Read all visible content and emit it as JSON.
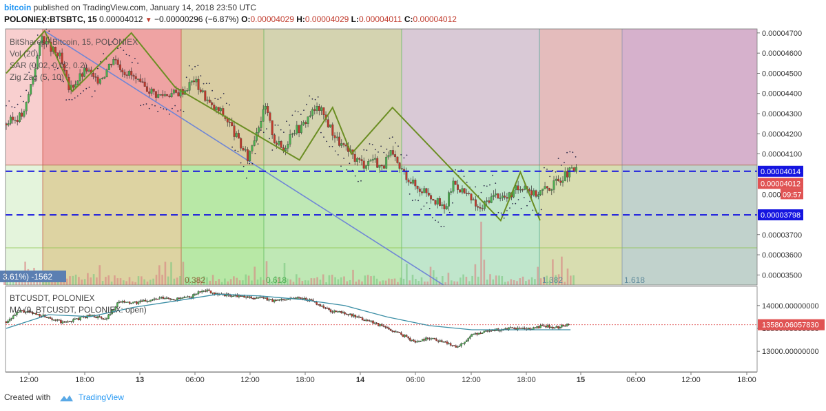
{
  "header": {
    "author": "bitcoin",
    "published_text": "published on TradingView.com, January 14, 2018 23:50 UTC",
    "symbol": "POLONIEX:BTSBTC, 15",
    "last": "0.00004012",
    "change": "−0.00000296 (−6.87%)",
    "o_label": "O:",
    "o": "0.00004029",
    "h_label": "H:",
    "h": "0.00004029",
    "l_label": "L:",
    "l": "0.00004011",
    "c_label": "C:",
    "c": "0.00004012"
  },
  "main_pane": {
    "legend": [
      "BitShares / Bitcoin, 15, POLONIEX",
      "Vol (20)",
      "SAR (0.02, 0.02, 0.2)",
      "Zig Zag (5, 10)"
    ],
    "fib_labels": [
      "0.382",
      "0.618",
      "1.382",
      "1.618"
    ],
    "left_tag": "3.61%) -1562",
    "price_tags": {
      "line_upper": "0.00004014",
      "last": "0.00004012",
      "countdown": "09:57",
      "line_lower": "0.00003798",
      "partial": "0.000"
    },
    "colors": {
      "up": "#4caf50",
      "down": "#c0392b",
      "dash": "#1515e0",
      "zigzag": "#6b8e23",
      "trend": "#6f86d6"
    }
  },
  "lower_pane": {
    "legend": [
      "BTCUSDT, POLONIEX",
      "MA (9, BTCUSDT, POLONIEX: open)"
    ],
    "price_tag": "13580.06057830"
  },
  "footer": {
    "created_with": "Created with",
    "brand": "TradingView"
  },
  "chart_data": [
    {
      "type": "candlestick",
      "title": "BitShares / Bitcoin, 15, POLONIEX",
      "ylim": [
        3.45e-05,
        4.72e-05
      ],
      "yticks": [
        "0.00004700",
        "0.00004600",
        "0.00004500",
        "0.00004400",
        "0.00004300",
        "0.00004200",
        "0.00004100",
        "0.00003700",
        "0.00003600",
        "0.00003500"
      ],
      "xticks": [
        "12:00",
        "18:00",
        "13",
        "06:00",
        "12:00",
        "18:00",
        "14",
        "06:00",
        "12:00",
        "18:00",
        "15",
        "06:00",
        "12:00",
        "18:00"
      ],
      "close_path": [
        [
          0,
          4.25e-05
        ],
        [
          2,
          4.3e-05
        ],
        [
          4,
          4.68e-05
        ],
        [
          5,
          4.62e-05
        ],
        [
          6,
          4.58e-05
        ],
        [
          7,
          4.42e-05
        ],
        [
          8,
          4.47e-05
        ],
        [
          9,
          4.52e-05
        ],
        [
          10,
          4.46e-05
        ],
        [
          11,
          4.5e-05
        ],
        [
          12,
          4.58e-05
        ],
        [
          13,
          4.52e-05
        ],
        [
          14,
          4.49e-05
        ],
        [
          15,
          4.44e-05
        ],
        [
          16,
          4.42e-05
        ],
        [
          17,
          4.39e-05
        ],
        [
          18,
          4.4e-05
        ],
        [
          19,
          4.4e-05
        ],
        [
          20,
          4.42e-05
        ],
        [
          21,
          4.47e-05
        ],
        [
          22,
          4.4e-05
        ],
        [
          23,
          4.33e-05
        ],
        [
          24,
          4.31e-05
        ],
        [
          25,
          4.25e-05
        ],
        [
          26,
          4.16e-05
        ],
        [
          27,
          4.08e-05
        ],
        [
          28,
          4.22e-05
        ],
        [
          29,
          4.33e-05
        ],
        [
          30,
          4.17e-05
        ],
        [
          31,
          4.12e-05
        ],
        [
          32,
          4.22e-05
        ],
        [
          33,
          4.23e-05
        ],
        [
          34,
          4.3e-05
        ],
        [
          35,
          4.33e-05
        ],
        [
          36,
          4.25e-05
        ],
        [
          37,
          4.17e-05
        ],
        [
          38,
          4.12e-05
        ],
        [
          39,
          4.08e-05
        ],
        [
          40,
          4.05e-05
        ],
        [
          41,
          4.08e-05
        ],
        [
          42,
          4.03e-05
        ],
        [
          43,
          4.1e-05
        ],
        [
          44,
          4.03e-05
        ],
        [
          45,
          3.98e-05
        ],
        [
          46,
          3.93e-05
        ],
        [
          47,
          3.92e-05
        ],
        [
          48,
          3.87e-05
        ],
        [
          49,
          3.82e-05
        ],
        [
          50,
          3.96e-05
        ],
        [
          51,
          3.92e-05
        ],
        [
          52,
          3.87e-05
        ],
        [
          53,
          3.82e-05
        ],
        [
          54,
          3.88e-05
        ],
        [
          55,
          3.9e-05
        ],
        [
          56,
          3.88e-05
        ],
        [
          57,
          3.92e-05
        ],
        [
          58,
          3.95e-05
        ],
        [
          59,
          3.9e-05
        ],
        [
          60,
          3.92e-05
        ],
        [
          61,
          3.94e-05
        ],
        [
          62,
          3.98e-05
        ],
        [
          63,
          4.01e-05
        ],
        [
          64,
          4.02e-05
        ]
      ],
      "zigzag": [
        [
          0,
          4.5e-05
        ],
        [
          4.3,
          4.71e-05
        ],
        [
          7.4,
          4.41e-05
        ],
        [
          14,
          4.7e-05
        ],
        [
          18.9,
          4.43e-05
        ],
        [
          32.8,
          4.07e-05
        ],
        [
          36.5,
          4.33e-05
        ],
        [
          38.6,
          4.1e-05
        ],
        [
          43.2,
          4.33e-05
        ],
        [
          55.3,
          3.77e-05
        ],
        [
          57.5,
          4.01e-05
        ],
        [
          59.7,
          3.77e-05
        ]
      ],
      "horizontal_lines": [
        4.014e-05,
        3.798e-05
      ],
      "trendline": [
        [
          4.3,
          4.71e-05
        ],
        [
          48.9,
          3.44e-05
        ]
      ],
      "fib_time_zones": [
        "0.382",
        "0.618",
        "1.382",
        "1.618"
      ],
      "volume_spike_index": 53
    },
    {
      "type": "candlestick",
      "title": "BTCUSDT, POLONIEX",
      "ylim": [
        12550,
        14420
      ],
      "yticks": [
        "14000.00000000",
        "13500.00000000",
        "13000.00000000"
      ],
      "last": 13580.0605783,
      "close_path": [
        [
          0,
          13650
        ],
        [
          2,
          13880
        ],
        [
          4,
          13820
        ],
        [
          6,
          13750
        ],
        [
          8,
          13620
        ],
        [
          10,
          13700
        ],
        [
          12,
          13790
        ],
        [
          14,
          13690
        ],
        [
          16,
          14080
        ],
        [
          18,
          14050
        ],
        [
          20,
          14110
        ],
        [
          22,
          14160
        ],
        [
          24,
          14140
        ],
        [
          26,
          14180
        ],
        [
          28,
          14350
        ],
        [
          30,
          14250
        ],
        [
          32,
          14220
        ],
        [
          34,
          14180
        ],
        [
          36,
          14170
        ],
        [
          38,
          14100
        ],
        [
          40,
          14160
        ],
        [
          42,
          14170
        ],
        [
          44,
          14050
        ],
        [
          46,
          13880
        ],
        [
          48,
          13840
        ],
        [
          50,
          13720
        ],
        [
          52,
          13640
        ],
        [
          54,
          13500
        ],
        [
          56,
          13370
        ],
        [
          58,
          13200
        ],
        [
          60,
          13300
        ],
        [
          62,
          13200
        ],
        [
          64,
          13100
        ],
        [
          66,
          13340
        ],
        [
          68,
          13450
        ],
        [
          70,
          13470
        ],
        [
          72,
          13500
        ],
        [
          74,
          13480
        ],
        [
          76,
          13550
        ],
        [
          78,
          13520
        ],
        [
          80,
          13610
        ]
      ],
      "ma_path": [
        [
          0,
          13500
        ],
        [
          6,
          13800
        ],
        [
          12,
          13760
        ],
        [
          18,
          13960
        ],
        [
          24,
          14100
        ],
        [
          30,
          14250
        ],
        [
          36,
          14210
        ],
        [
          42,
          14130
        ],
        [
          48,
          14000
        ],
        [
          54,
          13750
        ],
        [
          60,
          13560
        ],
        [
          66,
          13470
        ],
        [
          70,
          13470
        ],
        [
          75,
          13470
        ],
        [
          80,
          13470
        ]
      ]
    }
  ]
}
